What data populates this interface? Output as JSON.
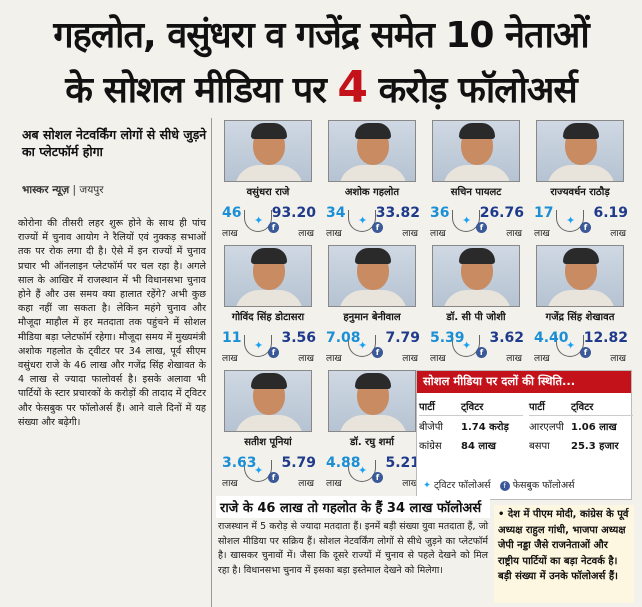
{
  "headline": {
    "line1": "गहलोत, वसुंधरा व गजेंद्र समेत 10 नेताओं",
    "line2_a": "के सोशल मीडिया पर ",
    "line2_num": "4",
    "line2_b": " करोड़ फॉलोअर्स"
  },
  "subhead": "अब सोशल नेटवर्किंग लोगों से सीधे जुड़ने का प्लेटफॉर्म होगा",
  "byline": {
    "source": "भास्कर न्यूज़",
    "place": " | जयपुर"
  },
  "body": [
    "कोरोना की तीसरी लहर शुरू होने के साथ ही पांच राज्यों में चुनाव आयोग ने रैलियों एवं नुक्कड़ सभाओं तक पर रोक लगा दी है। ऐसे में इन राज्यों में चुनाव प्रचार भी ऑनलाइन प्लेटफॉर्म पर चल रहा है। अगले साल के आखिर में राजस्थान में भी विधानसभा चुनाव होने हैं और उस समय क्या हालात रहेंगे? अभी कुछ कहा नहीं जा सकता है। लेकिन महंगे चुनाव और मौजूदा माहौल में हर मतदाता तक पहुंचने में सोशल मीडिया बड़ा प्लेटफॉर्म रहेगा। मौजूदा समय में मुख्यमंत्री अशोक गहलोत के ट्वीटर पर 34 लाख, पूर्व सीएम वसुंधरा राजे के 46 लाख और गजेंद्र सिंह शेखावत के 4 लाख से ज्यादा फालोवर्स है। इसके अलावा भी पार्टियों के स्टार प्रचारकों के करोड़ों की तादाद में ट्विटर और फेसबुक पर फॉलोअर्स हैं। आने वाले दिनों में यह संख्या और बढ़ेगी।"
  ],
  "unit": "लाख",
  "leaders": [
    {
      "name": "वसुंधरा राजे",
      "twitter": "46",
      "facebook": "93.20"
    },
    {
      "name": "अशोक गहलोत",
      "twitter": "34",
      "facebook": "33.82"
    },
    {
      "name": "सचिन पायलट",
      "twitter": "36",
      "facebook": "26.76"
    },
    {
      "name": "राज्यवर्धन राठौड़",
      "twitter": "17",
      "facebook": "6.19"
    },
    {
      "name": "गोविंद सिंह डोटासरा",
      "twitter": "11",
      "facebook": "3.56"
    },
    {
      "name": "हनुमान बेनीवाल",
      "twitter": "7.08",
      "facebook": "7.79"
    },
    {
      "name": "डॉ. सी पी जोशी",
      "twitter": "5.39",
      "facebook": "3.62"
    },
    {
      "name": "गजेंद्र सिंह शेखावत",
      "twitter": "4.40",
      "facebook": "12.82"
    },
    {
      "name": "सतीश पूनियां",
      "twitter": "3.63",
      "facebook": "5.79"
    },
    {
      "name": "डॉ. रघु शर्मा",
      "twitter": "4.88",
      "facebook": "5.21"
    }
  ],
  "party_box": {
    "title": "सोशल मीडिया पर दलों की स्थिति...",
    "col_party": "पार्टी",
    "col_twitter": "ट्विटर",
    "left": [
      {
        "party": "बीजेपी",
        "value": "1.74 करोड़"
      },
      {
        "party": "कांग्रेस",
        "value": "84 लाख"
      }
    ],
    "right": [
      {
        "party": "आरएलपी",
        "value": "1.06 लाख"
      },
      {
        "party": "बसपा",
        "value": "25.3 हजार"
      }
    ],
    "legend_twitter": "ट्विटर फॉलोअर्स",
    "legend_facebook": "फेसबुक फॉलोअर्स"
  },
  "bottom": {
    "heading": "राजे के 46 लाख तो गहलोत के हैं 34 लाख फॉलोअर्स",
    "text": "राजस्थान में 5 करोड़ से ज्यादा मतदाता हैं। इनमें बड़ी संख्या युवा मतदाता हैं, जो सोशल मीडिया पर सक्रिय हैं। सोशल नेटवर्किंग लोगों से सीधे जुड़ने का प्लेटफॉर्म है। खासकर चुनावों में। जैसा कि दूसरे राज्यों में चुनाव से पहले देखने को मिल रहा है। विधानसभा चुनाव में इसका बड़ा इस्तेमाल देखने को मिलेगा।",
    "bullet": "• देश में पीएम मोदी, कांग्रेस के पूर्व अध्यक्ष राहुल गांधी, भाजपा अध्यक्ष जेपी नड्डा जैसे राजनेताओं और राष्ट्रीय पार्टियों का बड़ा नेटवर्क है। बड़ी संख्या में उनके फॉलोअर्स हैं।"
  },
  "colors": {
    "accent_red": "#c4121a",
    "twitter_blue": "#1da1f2",
    "facebook_blue": "#3b5998"
  }
}
